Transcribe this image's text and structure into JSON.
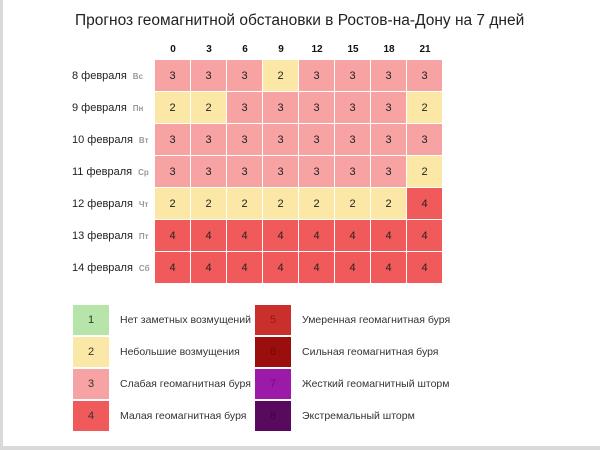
{
  "chart_data": {
    "type": "heatmap",
    "title": "Прогноз геомагнитной обстановки в Ростов-на-Дону на 7 дней",
    "hours": [
      "0",
      "3",
      "6",
      "9",
      "12",
      "15",
      "18",
      "21"
    ],
    "rows": [
      {
        "date": "8 февраля",
        "dow": "Вс",
        "values": [
          3,
          3,
          3,
          2,
          3,
          3,
          3,
          3
        ]
      },
      {
        "date": "9 февраля",
        "dow": "Пн",
        "values": [
          2,
          2,
          3,
          3,
          3,
          3,
          3,
          2
        ]
      },
      {
        "date": "10 февраля",
        "dow": "Вт",
        "values": [
          3,
          3,
          3,
          3,
          3,
          3,
          3,
          3
        ]
      },
      {
        "date": "11 февраля",
        "dow": "Ср",
        "values": [
          3,
          3,
          3,
          3,
          3,
          3,
          3,
          2
        ]
      },
      {
        "date": "12 февраля",
        "dow": "Чт",
        "values": [
          2,
          2,
          2,
          2,
          2,
          2,
          2,
          4
        ]
      },
      {
        "date": "13 февраля",
        "dow": "Пт",
        "values": [
          4,
          4,
          4,
          4,
          4,
          4,
          4,
          4
        ]
      },
      {
        "date": "14 февраля",
        "dow": "Сб",
        "values": [
          4,
          4,
          4,
          4,
          4,
          4,
          4,
          4
        ]
      }
    ],
    "legend": [
      {
        "level": "1",
        "label": "Нет заметных возмущений",
        "color": "#b7e4a8",
        "text_color": "#333333"
      },
      {
        "level": "2",
        "label": "Небольшие возмущения",
        "color": "#fce8a6",
        "text_color": "#333333"
      },
      {
        "level": "3",
        "label": "Слабая геомагнитная буря",
        "color": "#f8a3a3",
        "text_color": "#333333"
      },
      {
        "level": "4",
        "label": "Малая геомагнитная буря",
        "color": "#f05a5a",
        "text_color": "#333333"
      },
      {
        "level": "5",
        "label": "Умеренная геомагнитная буря",
        "color": "#c9302c",
        "text_color": "#8a1a1a"
      },
      {
        "level": "6",
        "label": "Сильная геомагнитная буря",
        "color": "#9a0e0e",
        "text_color": "#6e0a0a"
      },
      {
        "level": "7",
        "label": "Жесткий геомагнитный шторм",
        "color": "#9b1ba8",
        "text_color": "#6c1078"
      },
      {
        "level": "8",
        "label": "Экстремальный шторм",
        "color": "#5a0a5e",
        "text_color": "#3c063f"
      }
    ]
  }
}
